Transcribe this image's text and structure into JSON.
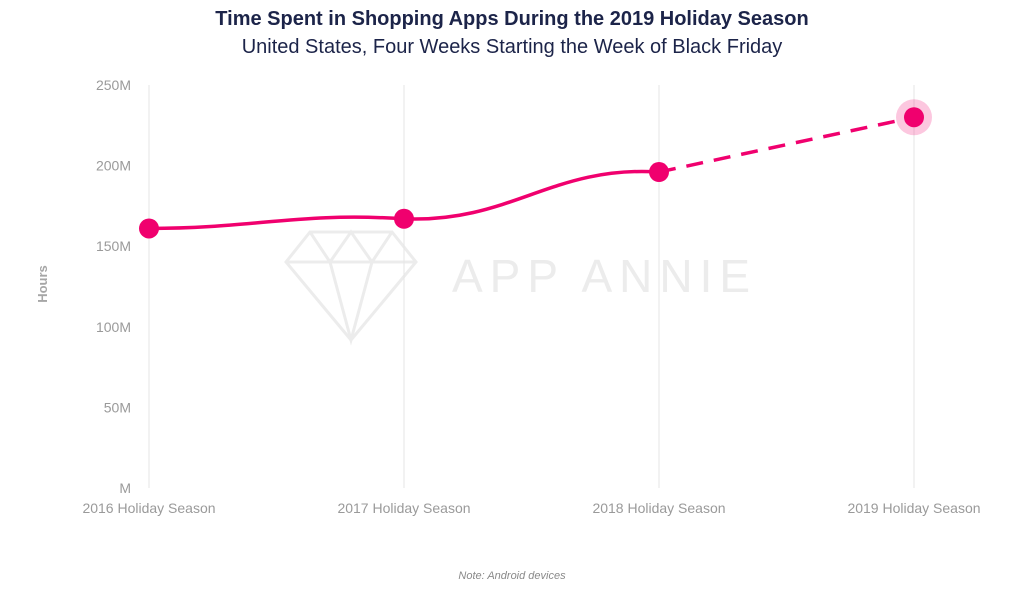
{
  "chart_data": {
    "type": "line",
    "title": "Time Spent in Shopping Apps During the 2019 Holiday Season",
    "subtitle": "United States, Four Weeks Starting the Week of Black Friday",
    "ylabel": "Hours",
    "xlabel": "",
    "categories": [
      "2016 Holiday Season",
      "2017 Holiday Season",
      "2018 Holiday Season",
      "2019 Holiday Season"
    ],
    "series": [
      {
        "values": [
          161000000,
          167000000,
          196000000,
          230000000
        ],
        "color": "#f0006e",
        "projected_from_index": 2,
        "highlight_index": 3
      }
    ],
    "ylim": [
      0,
      250000000
    ],
    "yticks": [
      {
        "value": 0,
        "label": "M"
      },
      {
        "value": 50000000,
        "label": "50M"
      },
      {
        "value": 100000000,
        "label": "100M"
      },
      {
        "value": 150000000,
        "label": "150M"
      },
      {
        "value": 200000000,
        "label": "200M"
      },
      {
        "value": 250000000,
        "label": "250M"
      }
    ],
    "grid": "vertical",
    "watermark": "APP ANNIE",
    "note": "Note: Android devices"
  }
}
